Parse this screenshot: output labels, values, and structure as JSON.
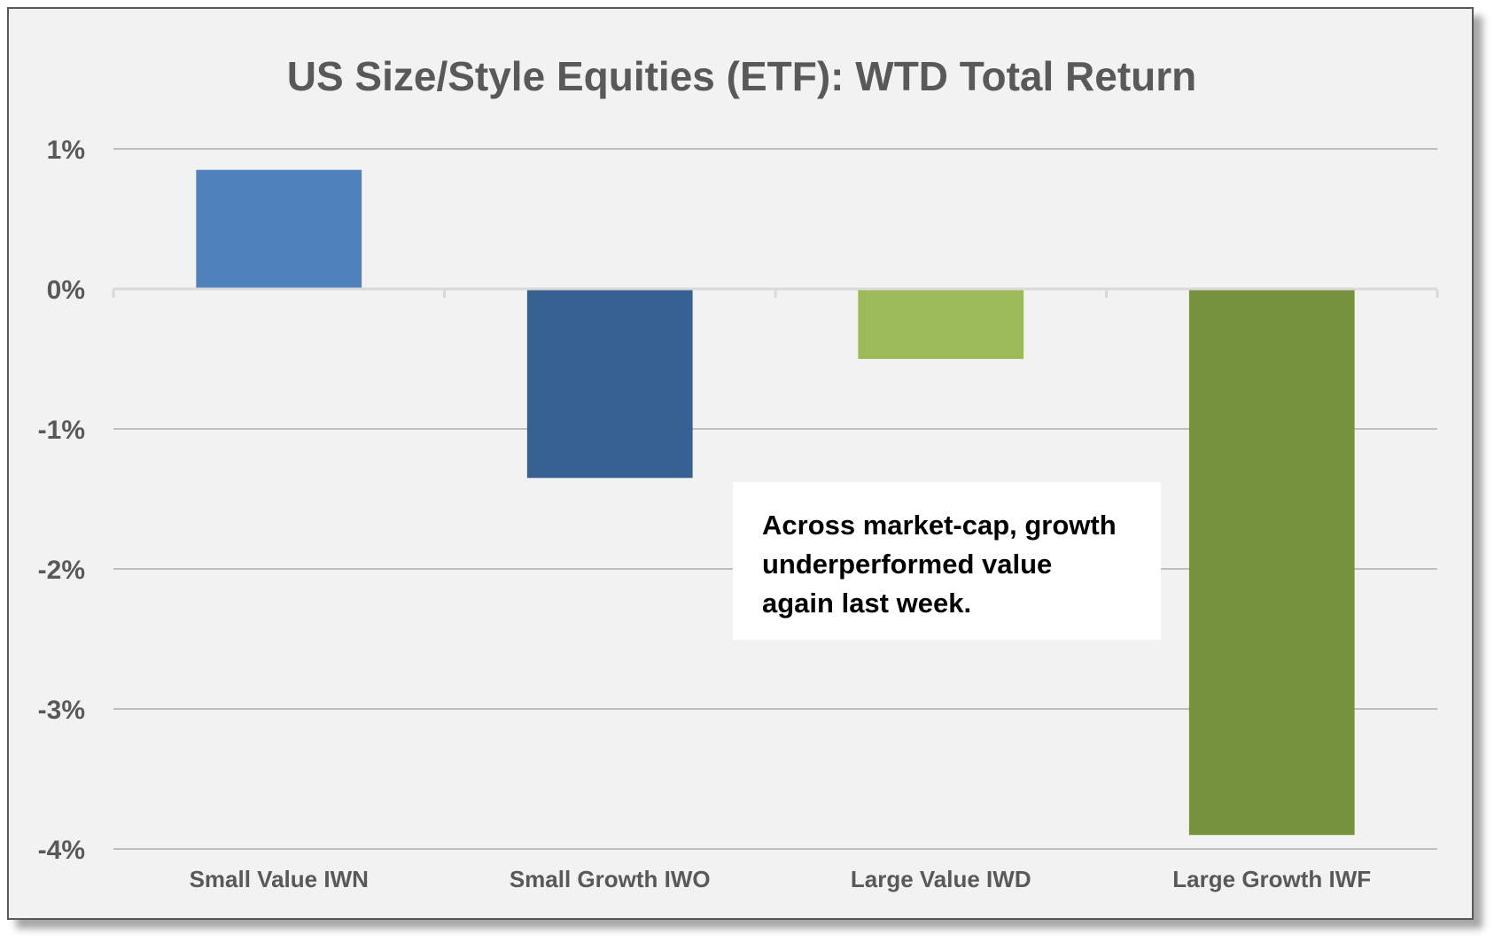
{
  "chart_data": {
    "type": "bar",
    "title": "US Size/Style Equities (ETF): WTD Total Return",
    "categories": [
      "Small Value IWN",
      "Small Growth IWO",
      "Large Value IWD",
      "Large Growth IWF"
    ],
    "values": [
      0.85,
      -1.35,
      -0.5,
      -3.9
    ],
    "colors": [
      "#4f81bd",
      "#376092",
      "#9bbb59",
      "#76923c"
    ],
    "ylim": [
      -4,
      1
    ],
    "yticks": [
      1,
      0,
      -1,
      -2,
      -3,
      -4
    ],
    "ytick_labels": [
      "1%",
      "0%",
      "-1%",
      "-2%",
      "-3%",
      "-4%"
    ],
    "xlabel": "",
    "ylabel": "",
    "grid": true,
    "legend": "none",
    "annotation": {
      "lines": [
        "Across market-cap, growth",
        "underperformed value",
        "again last week."
      ]
    }
  }
}
